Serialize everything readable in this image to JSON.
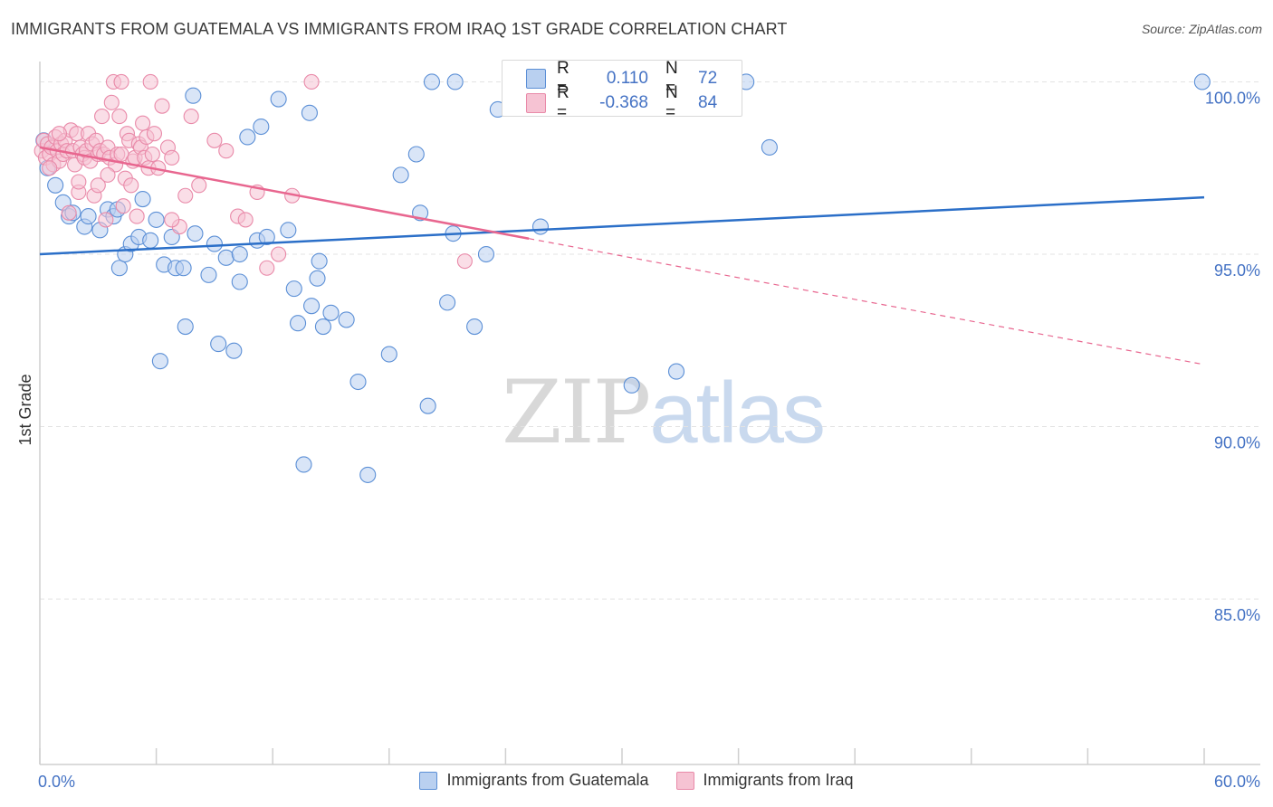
{
  "title": "IMMIGRANTS FROM GUATEMALA VS IMMIGRANTS FROM IRAQ 1ST GRADE CORRELATION CHART",
  "source": "Source: ZipAtlas.com",
  "watermark": {
    "zip": "ZIP",
    "atlas": "atlas"
  },
  "colors": {
    "blue": "#5b8fd6",
    "blue_fill": "#b9d0f0",
    "blue_line": "#2b6fc8",
    "pink": "#e98aa9",
    "pink_fill": "#f6c3d3",
    "pink_line": "#e8668f",
    "axis_text": "#4472c4",
    "grid": "#e3e3e3"
  },
  "stats": {
    "row1": {
      "r_label": "R =",
      "r_value": "0.110",
      "n_label": "N =",
      "n_value": "72"
    },
    "row2": {
      "r_label": "R =",
      "r_value": "-0.368",
      "n_label": "N =",
      "n_value": "84"
    }
  },
  "legend": {
    "series1": "Immigrants from Guatemala",
    "series2": "Immigrants from Iraq"
  },
  "chart_data": {
    "type": "scatter",
    "title": "IMMIGRANTS FROM GUATEMALA VS IMMIGRANTS FROM IRAQ 1ST GRADE CORRELATION CHART",
    "xlabel": "",
    "ylabel": "1st Grade",
    "xlim": [
      0,
      60
    ],
    "ylim": [
      80.2,
      100.8
    ],
    "x_tick_labels": [
      "0.0%",
      "60.0%"
    ],
    "y_ticks": [
      85,
      90,
      95,
      100
    ],
    "y_tick_labels": [
      "85.0%",
      "90.0%",
      "95.0%",
      "100.0%"
    ],
    "grid": "horizontal dashed",
    "legend_position": "bottom-center",
    "series": [
      {
        "name": "Immigrants from Guatemala",
        "trend": {
          "x0": 0,
          "y0": 95.0,
          "x1": 60,
          "y1": 96.65,
          "solid_to_x": 60
        },
        "points": [
          [
            0.2,
            98.3
          ],
          [
            0.4,
            97.5
          ],
          [
            0.8,
            97.0
          ],
          [
            1.2,
            96.5
          ],
          [
            1.5,
            96.1
          ],
          [
            1.7,
            96.2
          ],
          [
            2.3,
            95.8
          ],
          [
            2.5,
            96.1
          ],
          [
            3.1,
            95.7
          ],
          [
            3.5,
            96.3
          ],
          [
            3.8,
            96.1
          ],
          [
            4.0,
            96.3
          ],
          [
            4.1,
            94.6
          ],
          [
            4.4,
            95.0
          ],
          [
            4.7,
            95.3
          ],
          [
            5.1,
            95.5
          ],
          [
            5.3,
            96.6
          ],
          [
            5.7,
            95.4
          ],
          [
            6.0,
            96.0
          ],
          [
            6.2,
            91.9
          ],
          [
            6.4,
            94.7
          ],
          [
            6.8,
            95.5
          ],
          [
            7.0,
            94.6
          ],
          [
            7.4,
            94.6
          ],
          [
            7.5,
            92.9
          ],
          [
            7.9,
            99.6
          ],
          [
            8.0,
            95.6
          ],
          [
            8.7,
            94.4
          ],
          [
            9.0,
            95.3
          ],
          [
            9.2,
            92.4
          ],
          [
            9.6,
            94.9
          ],
          [
            10.0,
            92.2
          ],
          [
            10.3,
            95.0
          ],
          [
            10.3,
            94.2
          ],
          [
            10.7,
            98.4
          ],
          [
            11.2,
            95.4
          ],
          [
            11.4,
            98.7
          ],
          [
            11.7,
            95.5
          ],
          [
            12.3,
            99.5
          ],
          [
            12.8,
            95.7
          ],
          [
            13.1,
            94.0
          ],
          [
            13.3,
            93.0
          ],
          [
            13.6,
            88.9
          ],
          [
            13.9,
            99.1
          ],
          [
            14.0,
            93.5
          ],
          [
            14.3,
            94.3
          ],
          [
            14.4,
            94.8
          ],
          [
            14.6,
            92.9
          ],
          [
            15.0,
            93.3
          ],
          [
            15.8,
            93.1
          ],
          [
            16.4,
            91.3
          ],
          [
            16.9,
            88.6
          ],
          [
            18.0,
            92.1
          ],
          [
            18.6,
            97.3
          ],
          [
            19.4,
            97.9
          ],
          [
            19.6,
            96.2
          ],
          [
            20.0,
            90.6
          ],
          [
            20.2,
            100.0
          ],
          [
            21.0,
            93.6
          ],
          [
            21.3,
            95.6
          ],
          [
            21.4,
            100.0
          ],
          [
            22.4,
            92.9
          ],
          [
            23.0,
            95.0
          ],
          [
            23.6,
            99.2
          ],
          [
            25.8,
            95.8
          ],
          [
            28.6,
            100.0
          ],
          [
            30.2,
            100.0
          ],
          [
            30.5,
            91.2
          ],
          [
            32.8,
            91.6
          ],
          [
            36.4,
            100.0
          ],
          [
            37.6,
            98.1
          ],
          [
            59.9,
            100.0
          ]
        ]
      },
      {
        "name": "Immigrants from Iraq",
        "trend": {
          "x0": 0,
          "y0": 98.1,
          "x1": 60,
          "y1": 91.8,
          "solid_to_x": 25.2
        },
        "points": [
          [
            0.1,
            98.0
          ],
          [
            0.2,
            98.3
          ],
          [
            0.3,
            97.8
          ],
          [
            0.4,
            98.2
          ],
          [
            0.5,
            97.9
          ],
          [
            0.6,
            98.1
          ],
          [
            0.7,
            97.6
          ],
          [
            0.8,
            98.4
          ],
          [
            0.9,
            98.0
          ],
          [
            1.0,
            97.7
          ],
          [
            1.1,
            98.2
          ],
          [
            1.2,
            97.9
          ],
          [
            1.3,
            98.3
          ],
          [
            1.4,
            98.0
          ],
          [
            1.5,
            96.2
          ],
          [
            1.6,
            98.6
          ],
          [
            1.7,
            98.0
          ],
          [
            1.8,
            97.6
          ],
          [
            1.9,
            98.5
          ],
          [
            2.0,
            96.8
          ],
          [
            2.1,
            98.1
          ],
          [
            2.2,
            97.9
          ],
          [
            2.3,
            97.8
          ],
          [
            2.4,
            98.0
          ],
          [
            2.5,
            98.5
          ],
          [
            2.6,
            97.7
          ],
          [
            2.7,
            98.2
          ],
          [
            2.8,
            96.7
          ],
          [
            2.9,
            98.3
          ],
          [
            3.0,
            97.9
          ],
          [
            3.1,
            98.0
          ],
          [
            3.2,
            99.0
          ],
          [
            3.3,
            97.9
          ],
          [
            3.4,
            96.0
          ],
          [
            3.5,
            98.1
          ],
          [
            3.6,
            97.8
          ],
          [
            3.7,
            99.4
          ],
          [
            3.8,
            100.0
          ],
          [
            3.9,
            97.6
          ],
          [
            4.0,
            97.9
          ],
          [
            4.1,
            99.0
          ],
          [
            4.2,
            97.9
          ],
          [
            4.3,
            96.4
          ],
          [
            4.4,
            97.2
          ],
          [
            4.5,
            98.5
          ],
          [
            4.6,
            98.3
          ],
          [
            4.7,
            97.0
          ],
          [
            4.8,
            97.7
          ],
          [
            4.9,
            97.8
          ],
          [
            5.0,
            96.1
          ],
          [
            5.1,
            98.2
          ],
          [
            5.2,
            98.1
          ],
          [
            5.3,
            98.8
          ],
          [
            5.4,
            97.8
          ],
          [
            5.5,
            98.4
          ],
          [
            5.6,
            97.5
          ],
          [
            5.7,
            100.0
          ],
          [
            5.9,
            98.5
          ],
          [
            6.1,
            97.5
          ],
          [
            6.3,
            99.3
          ],
          [
            6.6,
            98.1
          ],
          [
            6.8,
            97.8
          ],
          [
            7.2,
            95.8
          ],
          [
            7.5,
            96.7
          ],
          [
            7.8,
            99.0
          ],
          [
            8.2,
            97.0
          ],
          [
            9.0,
            98.3
          ],
          [
            9.6,
            98.0
          ],
          [
            10.2,
            96.1
          ],
          [
            10.6,
            96.0
          ],
          [
            11.2,
            96.8
          ],
          [
            11.7,
            94.6
          ],
          [
            12.3,
            95.0
          ],
          [
            13.0,
            96.7
          ],
          [
            14.0,
            100.0
          ],
          [
            21.9,
            94.8
          ],
          [
            0.5,
            97.5
          ],
          [
            1.0,
            98.5
          ],
          [
            2.0,
            97.1
          ],
          [
            3.0,
            97.0
          ],
          [
            3.5,
            97.3
          ],
          [
            4.2,
            100.0
          ],
          [
            5.8,
            97.9
          ],
          [
            6.8,
            96.0
          ]
        ]
      }
    ]
  }
}
